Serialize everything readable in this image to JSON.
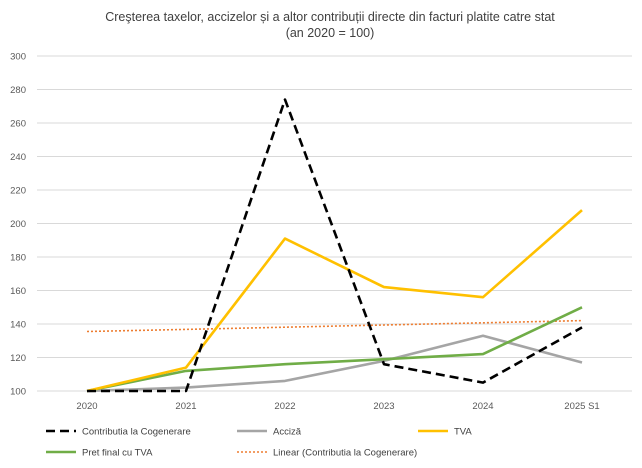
{
  "chart_data": {
    "type": "line",
    "title": "Creşterea taxelor, accizelor și a altor contribuții directe din facturi platite catre stat",
    "subtitle": "(an 2020 = 100)",
    "categories": [
      "2020",
      "2021",
      "2022",
      "2023",
      "2024",
      "2025 S1"
    ],
    "ylim": [
      100,
      300
    ],
    "yticks": [
      100,
      120,
      140,
      160,
      180,
      200,
      220,
      240,
      260,
      280,
      300
    ],
    "grid": true,
    "legend_position": "bottom",
    "series": [
      {
        "name": "Contributia la Cogenerare",
        "color": "#000000",
        "style": "dashed",
        "values": [
          100,
          100,
          274,
          116,
          105,
          138
        ]
      },
      {
        "name": "Acciză",
        "color": "#a5a5a5",
        "style": "solid",
        "values": [
          100,
          102,
          106,
          118,
          133,
          117
        ]
      },
      {
        "name": "TVA",
        "color": "#ffc000",
        "style": "solid",
        "values": [
          100,
          114,
          191,
          162,
          156,
          208
        ]
      },
      {
        "name": "Pret final cu TVA",
        "color": "#70ad47",
        "style": "solid",
        "values": [
          100,
          112,
          116,
          119,
          122,
          150
        ]
      },
      {
        "name": "Linear (Contributia la Cogenerare)",
        "color": "#ed7d31",
        "style": "dotted",
        "values": [
          135.5,
          136.8,
          138.1,
          139.4,
          140.7,
          142.0
        ]
      }
    ]
  }
}
